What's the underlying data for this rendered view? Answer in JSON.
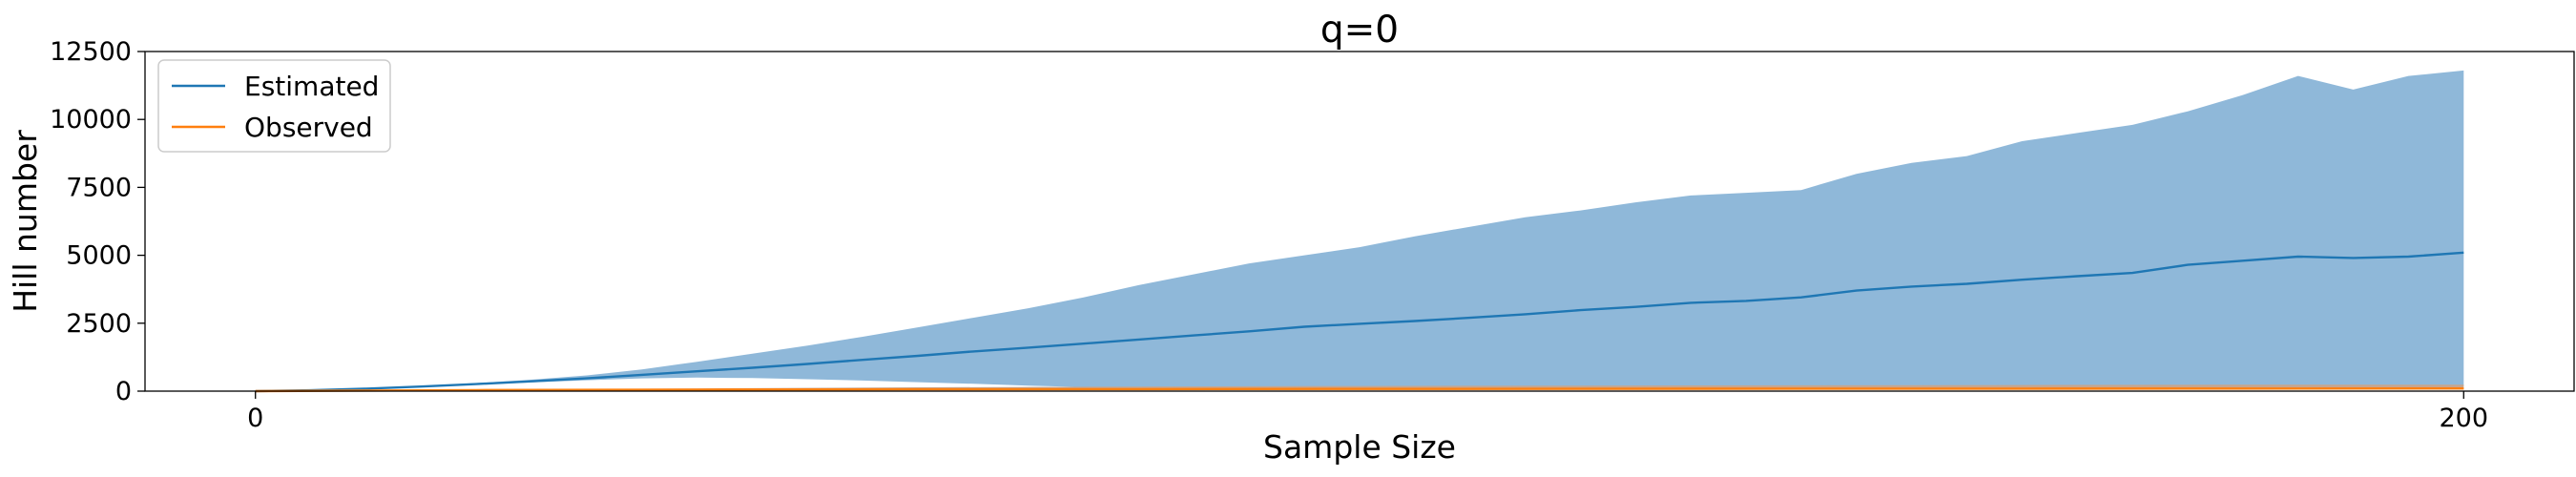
{
  "chart_data": {
    "type": "line",
    "title": "q=0",
    "xlabel": "Sample Size",
    "ylabel": "Hill number",
    "xlim": [
      -10,
      210
    ],
    "ylim": [
      0,
      12500
    ],
    "xticks": [
      0,
      200
    ],
    "yticks": [
      0,
      2500,
      5000,
      7500,
      10000,
      12500
    ],
    "legend_position": "top-left",
    "grid": false,
    "series": [
      {
        "name": "Estimated",
        "color": "#1f77b4",
        "band_color": "#8fb8d9",
        "x": [
          0,
          5,
          10,
          15,
          20,
          25,
          30,
          35,
          40,
          45,
          50,
          55,
          60,
          65,
          70,
          75,
          80,
          85,
          90,
          95,
          100,
          105,
          110,
          115,
          120,
          125,
          130,
          135,
          140,
          145,
          150,
          155,
          160,
          165,
          170,
          175,
          180,
          185,
          190,
          195,
          200
        ],
        "values": [
          0,
          30,
          90,
          170,
          260,
          360,
          470,
          600,
          730,
          860,
          1000,
          1150,
          1300,
          1460,
          1600,
          1750,
          1900,
          2050,
          2200,
          2370,
          2480,
          2580,
          2700,
          2830,
          2980,
          3100,
          3250,
          3320,
          3450,
          3700,
          3850,
          3950,
          4100,
          4230,
          4350,
          4650,
          4800,
          4950,
          4900,
          4950,
          5100
        ],
        "upper": [
          0,
          35,
          100,
          190,
          300,
          420,
          580,
          800,
          1080,
          1380,
          1680,
          2000,
          2350,
          2700,
          3050,
          3450,
          3900,
          4300,
          4700,
          5000,
          5300,
          5700,
          6050,
          6400,
          6650,
          6950,
          7200,
          7300,
          7400,
          8000,
          8400,
          8650,
          9200,
          9500,
          9800,
          10300,
          10900,
          11600,
          11100,
          11600,
          11800
        ],
        "lower": [
          0,
          30,
          85,
          160,
          240,
          320,
          400,
          470,
          500,
          480,
          440,
          390,
          330,
          270,
          200,
          150,
          140,
          140,
          145,
          145,
          150,
          150,
          150,
          155,
          155,
          155,
          160,
          160,
          160,
          165,
          165,
          165,
          170,
          170,
          175,
          175,
          180,
          180,
          185,
          185,
          190
        ]
      },
      {
        "name": "Observed",
        "color": "#ff7f0e",
        "band_color": "#c7a58d",
        "x": [
          0,
          20,
          40,
          60,
          80,
          100,
          120,
          140,
          160,
          180,
          200
        ],
        "values": [
          0,
          40,
          55,
          65,
          75,
          80,
          85,
          90,
          92,
          95,
          98
        ],
        "upper": [
          0,
          60,
          100,
          140,
          170,
          190,
          205,
          215,
          225,
          235,
          240
        ],
        "lower": [
          0,
          25,
          30,
          35,
          40,
          45,
          45,
          50,
          50,
          50,
          55
        ]
      }
    ]
  }
}
